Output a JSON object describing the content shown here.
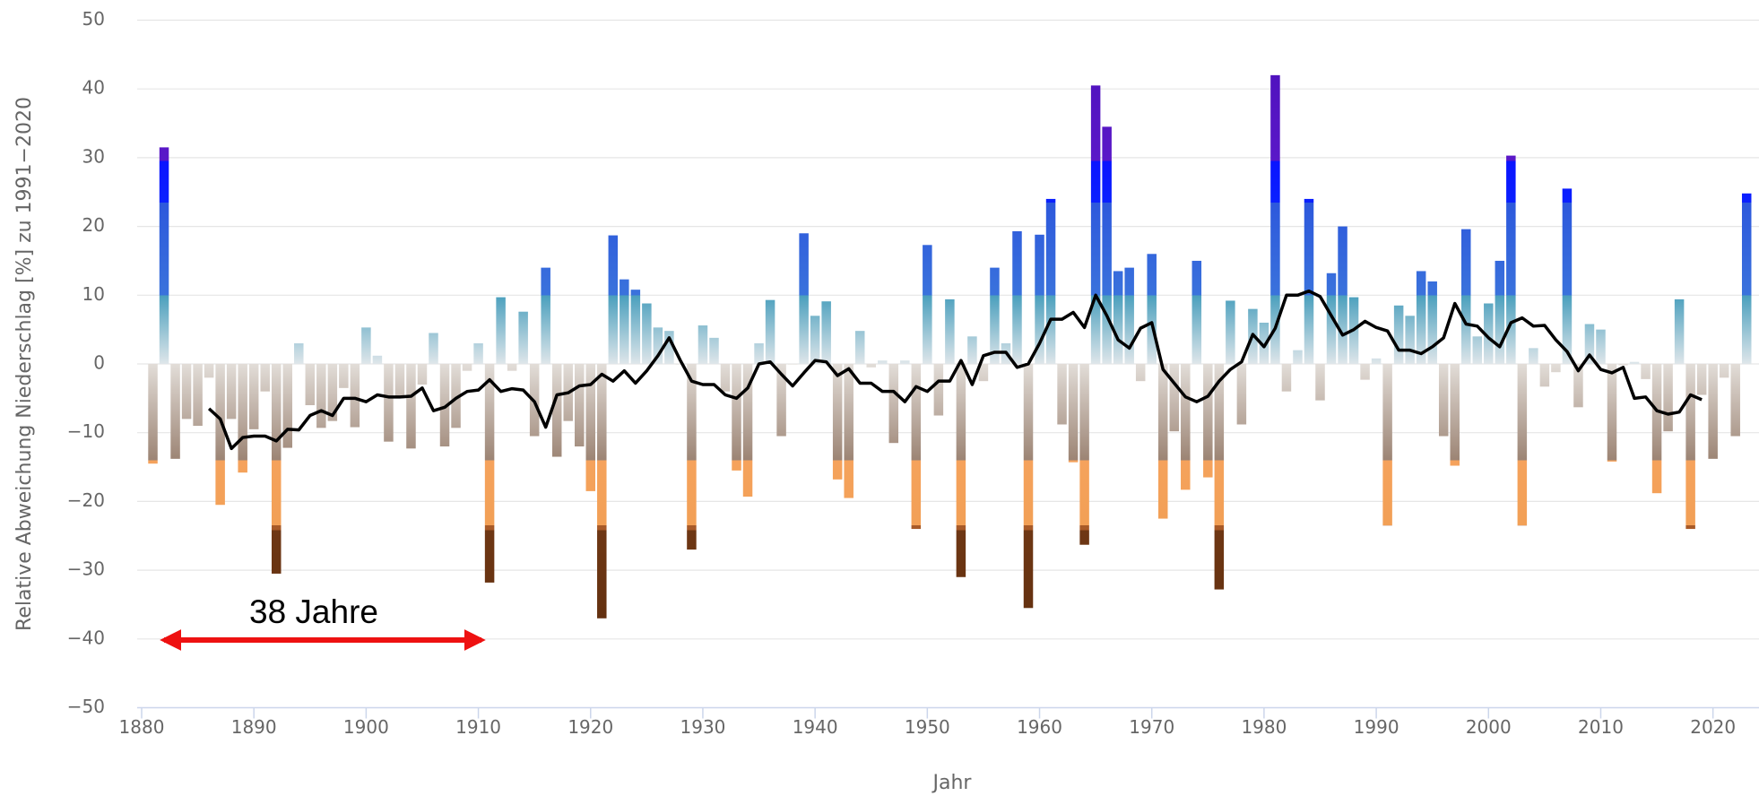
{
  "chart_data": {
    "type": "bar",
    "xlabel": "Jahr",
    "ylabel": "Relative Abweichung Niederschlag [%] zu 1991−2020",
    "annotations": [
      {
        "text": "38 Jahre"
      }
    ],
    "grid": true,
    "xlim": [
      1879.6,
      2024.1
    ],
    "xticks": [
      1880,
      1890,
      1900,
      1910,
      1920,
      1930,
      1940,
      1950,
      1960,
      1970,
      1980,
      1990,
      2000,
      2010,
      2020
    ],
    "ylim": [
      -50,
      50
    ],
    "yticks": [
      {
        "value": -50,
        "label": "−50"
      },
      {
        "value": -40,
        "label": "−40"
      },
      {
        "value": -30,
        "label": "−30"
      },
      {
        "value": -20,
        "label": "−20"
      },
      {
        "value": -10,
        "label": "−10"
      },
      0,
      10,
      20,
      30,
      40,
      50
    ],
    "x": [
      1881,
      1882,
      1883,
      1884,
      1885,
      1886,
      1887,
      1888,
      1889,
      1890,
      1891,
      1892,
      1893,
      1894,
      1895,
      1896,
      1897,
      1898,
      1899,
      1900,
      1901,
      1902,
      1903,
      1904,
      1905,
      1906,
      1907,
      1908,
      1909,
      1910,
      1911,
      1912,
      1913,
      1914,
      1915,
      1916,
      1917,
      1918,
      1919,
      1920,
      1921,
      1922,
      1923,
      1924,
      1925,
      1926,
      1927,
      1928,
      1929,
      1930,
      1931,
      1932,
      1933,
      1934,
      1935,
      1936,
      1937,
      1938,
      1939,
      1940,
      1941,
      1942,
      1943,
      1944,
      1945,
      1946,
      1947,
      1948,
      1949,
      1950,
      1951,
      1952,
      1953,
      1954,
      1955,
      1956,
      1957,
      1958,
      1959,
      1960,
      1961,
      1962,
      1963,
      1964,
      1965,
      1966,
      1967,
      1968,
      1969,
      1970,
      1971,
      1972,
      1973,
      1974,
      1975,
      1976,
      1977,
      1978,
      1979,
      1980,
      1981,
      1982,
      1983,
      1984,
      1985,
      1986,
      1987,
      1988,
      1989,
      1990,
      1991,
      1992,
      1993,
      1994,
      1995,
      1996,
      1997,
      1998,
      1999,
      2000,
      2001,
      2002,
      2003,
      2004,
      2005,
      2006,
      2007,
      2008,
      2009,
      2010,
      2011,
      2012,
      2013,
      2014,
      2015,
      2016,
      2017,
      2018,
      2019,
      2020,
      2021,
      2022,
      2023
    ],
    "series": [
      {
        "type": "bar",
        "values": [
          -14.5,
          31.5,
          -13.8,
          -8,
          -9,
          -2,
          -20.5,
          -8,
          -15.8,
          -9.5,
          -4,
          -30.5,
          -12.2,
          3,
          -6,
          -9.3,
          -8.3,
          -3.5,
          -9.2,
          5.3,
          1.2,
          -11.3,
          -5,
          -12.3,
          -3,
          4.5,
          -12,
          -9.3,
          -1,
          3,
          -31.8,
          9.7,
          -1,
          7.6,
          -10.5,
          14,
          -13.5,
          -8.3,
          -12,
          -18.5,
          -37,
          18.7,
          12.3,
          10.8,
          8.8,
          5.3,
          4.8,
          0,
          -27,
          5.6,
          3.8,
          -4,
          -15.5,
          -19.3,
          3,
          9.3,
          -10.5,
          0,
          19,
          7,
          9.1,
          -16.8,
          -19.5,
          4.8,
          -0.5,
          0.5,
          -11.5,
          0.5,
          -24,
          17.3,
          -7.5,
          9.4,
          -31,
          4,
          -2.5,
          14,
          3,
          19.3,
          -35.5,
          18.8,
          24,
          -8.8,
          -14.3,
          -26.3,
          40.5,
          34.5,
          13.5,
          14,
          -2.5,
          16,
          -22.5,
          -9.8,
          -18.3,
          15,
          -16.5,
          -32.8,
          9.2,
          -8.8,
          8,
          6,
          42,
          -4,
          2,
          24,
          -5.3,
          13.2,
          20,
          9.7,
          -2.3,
          0.8,
          -23.5,
          8.5,
          7,
          13.5,
          12,
          -10.5,
          -14.8,
          19.6,
          4,
          8.8,
          15,
          30.3,
          -23.5,
          2.3,
          -3.3,
          -1.2,
          25.5,
          -6.3,
          5.8,
          5,
          -14.2,
          -0.2,
          0.3,
          -2.2,
          -18.8,
          -9.8,
          9.4,
          -24,
          -4.5,
          -13.8,
          -2,
          -10.5,
          24.8
        ]
      },
      {
        "type": "line",
        "color": "#000000",
        "values": [
          null,
          null,
          null,
          null,
          null,
          -6.5,
          -8,
          -12.3,
          -10.7,
          -10.5,
          -10.5,
          -11.2,
          -9.5,
          -9.6,
          -7.5,
          -6.8,
          -7.5,
          -5,
          -5,
          -5.5,
          -4.5,
          -4.8,
          -4.8,
          -4.7,
          -3.5,
          -6.8,
          -6.3,
          -5,
          -4,
          -3.8,
          -2.3,
          -4,
          -3.6,
          -3.8,
          -5.5,
          -9.2,
          -4.5,
          -4.2,
          -3.2,
          -3,
          -1.5,
          -2.5,
          -1,
          -2.8,
          -1,
          1.2,
          3.8,
          0.5,
          -2.5,
          -3,
          -3,
          -4.5,
          -5,
          -3.5,
          0,
          0.3,
          -1.5,
          -3.2,
          -1.3,
          0.5,
          0.3,
          -1.7,
          -0.7,
          -2.8,
          -2.8,
          -4,
          -4,
          -5.5,
          -3.3,
          -4,
          -2.5,
          -2.5,
          0.5,
          -3,
          1.2,
          1.7,
          1.7,
          -0.5,
          0,
          3,
          6.5,
          6.5,
          7.5,
          5.3,
          10,
          7,
          3.5,
          2.3,
          5.2,
          6,
          -0.8,
          -2.8,
          -4.8,
          -5.5,
          -4.7,
          -2.5,
          -0.8,
          0.3,
          4.3,
          2.5,
          5.2,
          10,
          10,
          10.6,
          9.8,
          7,
          4.2,
          5,
          6.2,
          5.3,
          4.8,
          2,
          2,
          1.5,
          2.5,
          3.8,
          8.8,
          5.8,
          5.5,
          3.8,
          2.5,
          6,
          6.7,
          5.5,
          5.6,
          3.5,
          1.8,
          -1,
          1.3,
          -0.8,
          -1.3,
          -0.5,
          -5,
          -4.8,
          -6.8,
          -7.3,
          -7,
          -4.5,
          -5.2,
          null,
          null,
          null,
          null
        ]
      }
    ]
  }
}
